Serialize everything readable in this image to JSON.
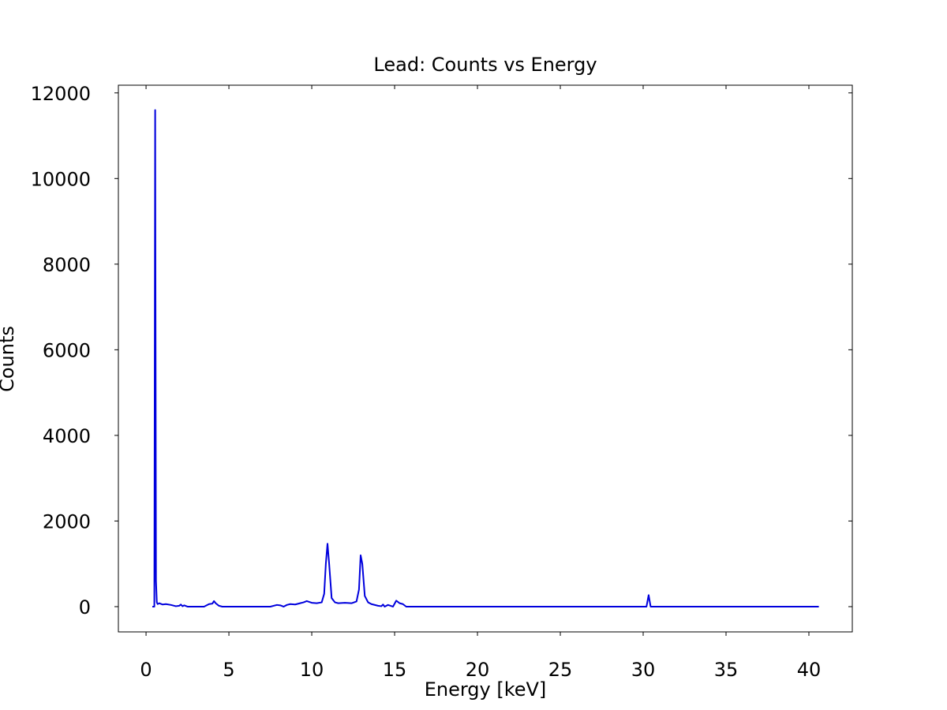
{
  "chart_data": {
    "type": "line",
    "title": "Lead: Counts vs Energy",
    "x_label": "Energy [keV]",
    "y_label": "Counts",
    "x": [
      0.38,
      0.5,
      0.55,
      0.6,
      0.65,
      0.7,
      0.8,
      1.0,
      1.2,
      1.5,
      1.8,
      2.0,
      2.1,
      2.2,
      2.3,
      2.5,
      3.0,
      3.5,
      3.8,
      4.0,
      4.1,
      4.2,
      4.4,
      4.6,
      5.0,
      7.5,
      7.9,
      8.1,
      8.3,
      8.5,
      8.7,
      9.0,
      9.3,
      9.5,
      9.7,
      10.0,
      10.3,
      10.6,
      10.75,
      10.85,
      10.95,
      11.05,
      11.2,
      11.4,
      11.6,
      12.0,
      12.4,
      12.7,
      12.85,
      12.95,
      13.05,
      13.2,
      13.4,
      13.6,
      14.0,
      14.2,
      14.3,
      14.4,
      14.6,
      14.9,
      15.1,
      15.3,
      15.5,
      15.7,
      16.0,
      30.0,
      30.2,
      30.33,
      30.45,
      30.6,
      40.6
    ],
    "series": [
      {
        "name": "Lead",
        "color": "#0000dd",
        "values": [
          0,
          0,
          11600,
          600,
          100,
          60,
          80,
          50,
          60,
          40,
          10,
          20,
          50,
          10,
          30,
          0,
          0,
          0,
          60,
          70,
          130,
          80,
          20,
          0,
          0,
          0,
          40,
          30,
          0,
          40,
          60,
          50,
          80,
          100,
          130,
          90,
          80,
          100,
          300,
          1000,
          1470,
          1000,
          200,
          100,
          80,
          90,
          80,
          120,
          400,
          1200,
          1000,
          250,
          100,
          60,
          20,
          10,
          50,
          0,
          40,
          0,
          140,
          80,
          60,
          0,
          0,
          0,
          0,
          270,
          0,
          0,
          0
        ]
      }
    ],
    "xlim": [
      -1.67,
      42.62
    ],
    "ylim": [
      -590,
      12180
    ],
    "xticks": [
      0,
      5,
      10,
      15,
      20,
      25,
      30,
      35,
      40
    ],
    "yticks": [
      0,
      2000,
      4000,
      6000,
      8000,
      10000,
      12000
    ]
  }
}
